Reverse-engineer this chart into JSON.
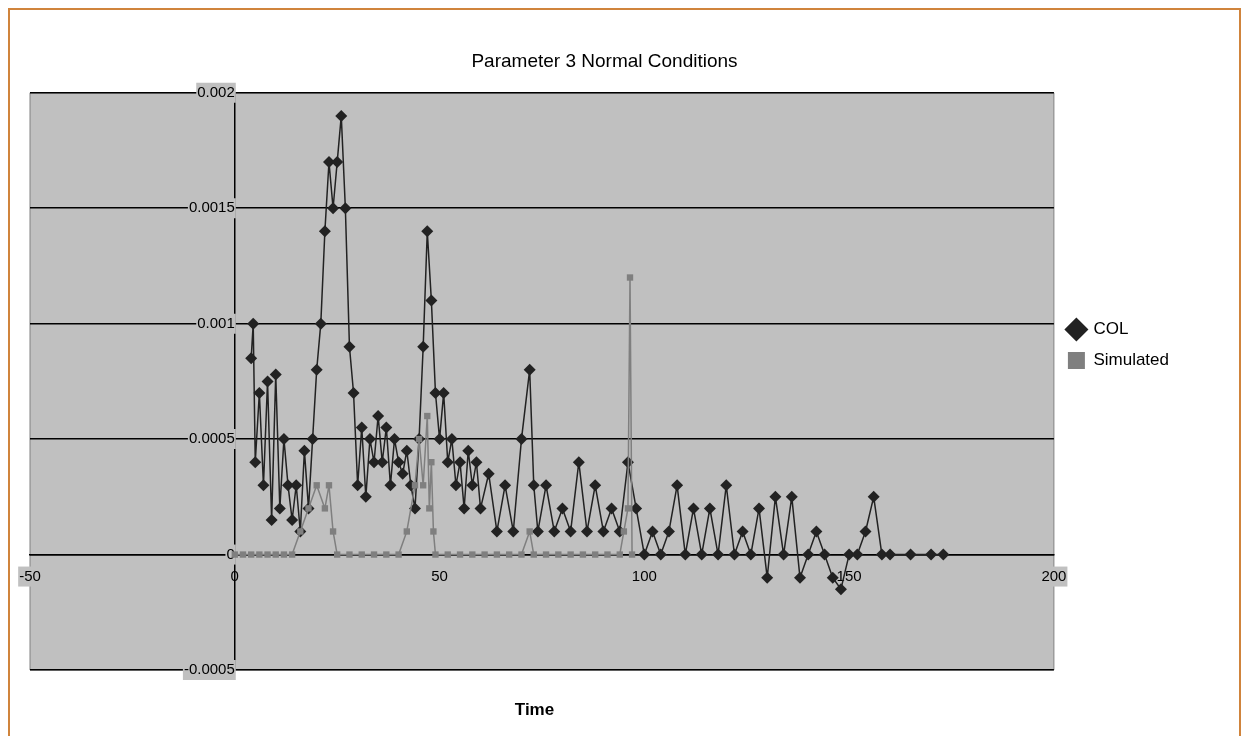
{
  "chart_data": {
    "type": "line",
    "title": "Parameter 3 Normal Conditions",
    "xlabel": "Time",
    "xlim": [
      -50,
      200
    ],
    "xticks": [
      -50,
      0,
      50,
      100,
      150,
      200
    ],
    "ylim": [
      -0.0005,
      0.002
    ],
    "yticks": [
      -0.0005,
      0,
      0.0005,
      0.001,
      0.0015,
      0.002
    ],
    "grid": "y",
    "legend": "right",
    "line_style": "solid",
    "series": [
      {
        "name": "COL",
        "color": "#222222",
        "marker": "diamond",
        "x": [
          4,
          4.5,
          5,
          6,
          7,
          8,
          9,
          10,
          11,
          12,
          13,
          14,
          15,
          16,
          17,
          18,
          19,
          20,
          21,
          22,
          23,
          24,
          25,
          26,
          27,
          28,
          29,
          30,
          31,
          32,
          33,
          34,
          35,
          36,
          37,
          38,
          39,
          40,
          41,
          42,
          43,
          44,
          45,
          46,
          47,
          48,
          49,
          50,
          51,
          52,
          53,
          54,
          55,
          56,
          57,
          58,
          59,
          60,
          62,
          64,
          66,
          68,
          70,
          72,
          73,
          74,
          76,
          78,
          80,
          82,
          84,
          86,
          88,
          90,
          92,
          94,
          96,
          98,
          100,
          102,
          104,
          106,
          108,
          110,
          112,
          114,
          116,
          118,
          120,
          122,
          124,
          126,
          128,
          130,
          132,
          134,
          136,
          138,
          140,
          142,
          144,
          146,
          148,
          150,
          152,
          154,
          156,
          158,
          160,
          165,
          170,
          173
        ],
        "values": [
          0.00085,
          0.001,
          0.0004,
          0.0007,
          0.0003,
          0.00075,
          0.00015,
          0.00078,
          0.0002,
          0.0005,
          0.0003,
          0.00015,
          0.0003,
          0.0001,
          0.00045,
          0.0002,
          0.0005,
          0.0008,
          0.001,
          0.0014,
          0.0017,
          0.0015,
          0.0017,
          0.0019,
          0.0015,
          0.0009,
          0.0007,
          0.0003,
          0.00055,
          0.00025,
          0.0005,
          0.0004,
          0.0006,
          0.0004,
          0.00055,
          0.0003,
          0.0005,
          0.0004,
          0.00035,
          0.00045,
          0.0003,
          0.0002,
          0.0005,
          0.0009,
          0.0014,
          0.0011,
          0.0007,
          0.0005,
          0.0007,
          0.0004,
          0.0005,
          0.0003,
          0.0004,
          0.0002,
          0.00045,
          0.0003,
          0.0004,
          0.0002,
          0.00035,
          0.0001,
          0.0003,
          0.0001,
          0.0005,
          0.0008,
          0.0003,
          0.0001,
          0.0003,
          0.0001,
          0.0002,
          0.0001,
          0.0004,
          0.0001,
          0.0003,
          0.0001,
          0.0002,
          0.0001,
          0.0004,
          0.0002,
          0,
          0.0001,
          0,
          0.0001,
          0.0003,
          0,
          0.0002,
          0,
          0.0002,
          0,
          0.0003,
          0,
          0.0001,
          0,
          0.0002,
          -0.0001,
          0.00025,
          0,
          0.00025,
          -0.0001,
          0,
          0.0001,
          0,
          -0.0001,
          -0.00015,
          0,
          0,
          0.0001,
          0.00025,
          0,
          0,
          0,
          0,
          0
        ]
      },
      {
        "name": "Simulated",
        "color": "#7f7f7f",
        "marker": "square",
        "x": [
          0,
          2,
          4,
          6,
          8,
          10,
          12,
          14,
          16,
          18,
          20,
          22,
          23,
          24,
          25,
          28,
          31,
          34,
          37,
          40,
          42,
          44,
          45,
          46,
          47,
          47.5,
          48,
          48.5,
          49,
          52,
          55,
          58,
          61,
          64,
          67,
          70,
          72,
          73,
          76,
          79,
          82,
          85,
          88,
          91,
          94,
          95,
          96,
          96.5,
          97
        ],
        "values": [
          0,
          0,
          0,
          0,
          0,
          0,
          0,
          0,
          0.0001,
          0.0002,
          0.0003,
          0.0002,
          0.0003,
          0.0001,
          0,
          0,
          0,
          0,
          0,
          0,
          0.0001,
          0.0003,
          0.0005,
          0.0003,
          0.0006,
          0.0002,
          0.0004,
          0.0001,
          0,
          0,
          0,
          0,
          0,
          0,
          0,
          0,
          0.0001,
          0,
          0,
          0,
          0,
          0,
          0,
          0,
          0,
          0.0001,
          0.0002,
          0.0012,
          0
        ]
      }
    ]
  }
}
